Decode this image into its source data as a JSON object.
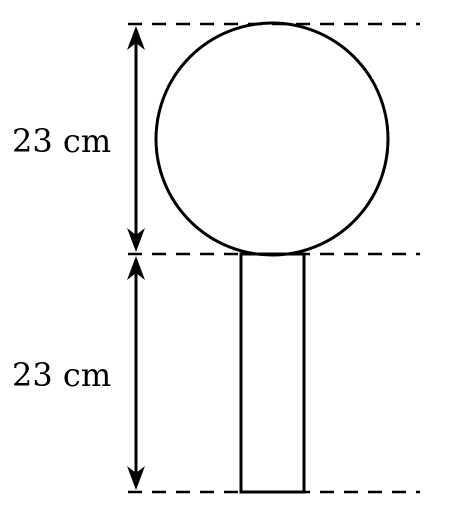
{
  "diagram": {
    "upper_dimension": {
      "label": "23 cm"
    },
    "lower_dimension": {
      "label": "23 cm"
    },
    "shapes": [
      "circle",
      "rectangle"
    ]
  },
  "colors": {
    "stroke": "#000000",
    "background": "#ffffff"
  }
}
